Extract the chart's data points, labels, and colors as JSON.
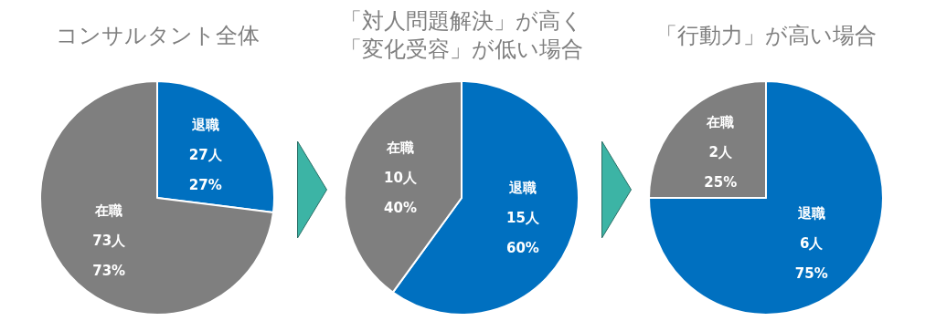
{
  "chart_data": [
    {
      "type": "pie",
      "title": "コンサルタント全体",
      "categories": [
        "退職",
        "在職"
      ],
      "values": [
        27,
        73
      ],
      "colors": [
        "#0070c0",
        "#7f7f7f"
      ],
      "value_labels": [
        "27人\n27%",
        "73人\n73%"
      ]
    },
    {
      "type": "pie",
      "title": "「対人問題解決」が高く「変化受容」が低い場合",
      "categories": [
        "退職",
        "在職"
      ],
      "values": [
        15,
        10
      ],
      "colors": [
        "#0070c0",
        "#7f7f7f"
      ],
      "value_labels": [
        "15人\n60%",
        "10人\n40%"
      ]
    },
    {
      "type": "pie",
      "title": "「行動力」が高い場合",
      "categories": [
        "退職",
        "在職"
      ],
      "values": [
        6,
        2
      ],
      "colors": [
        "#0070c0",
        "#7f7f7f"
      ],
      "value_labels": [
        "6人\n75%",
        "2人\n25%"
      ]
    }
  ]
}
